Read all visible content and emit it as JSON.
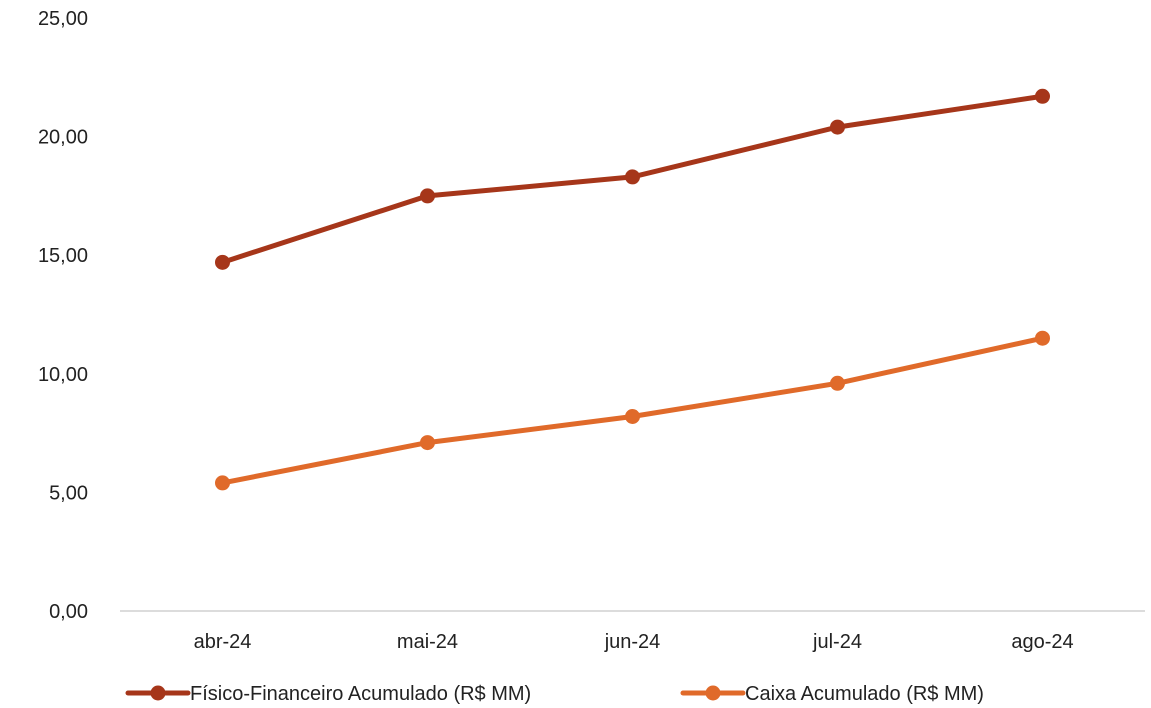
{
  "chart_data": {
    "type": "line",
    "title": "",
    "xlabel": "",
    "ylabel": "",
    "categories": [
      "abr-24",
      "mai-24",
      "jun-24",
      "jul-24",
      "ago-24"
    ],
    "yticks": [
      "0,00",
      "5,00",
      "10,00",
      "15,00",
      "20,00",
      "25,00"
    ],
    "ylim": [
      0,
      25
    ],
    "grid": false,
    "legend_position": "bottom",
    "series": [
      {
        "name": "Físico-Financeiro Acumulado (R$ MM)",
        "color": "#A6361A",
        "values": [
          14.7,
          17.5,
          18.3,
          20.4,
          21.7
        ]
      },
      {
        "name": "Caixa Acumulado (R$ MM)",
        "color": "#E06A2A",
        "values": [
          5.4,
          7.1,
          8.2,
          9.6,
          11.5
        ]
      }
    ]
  }
}
